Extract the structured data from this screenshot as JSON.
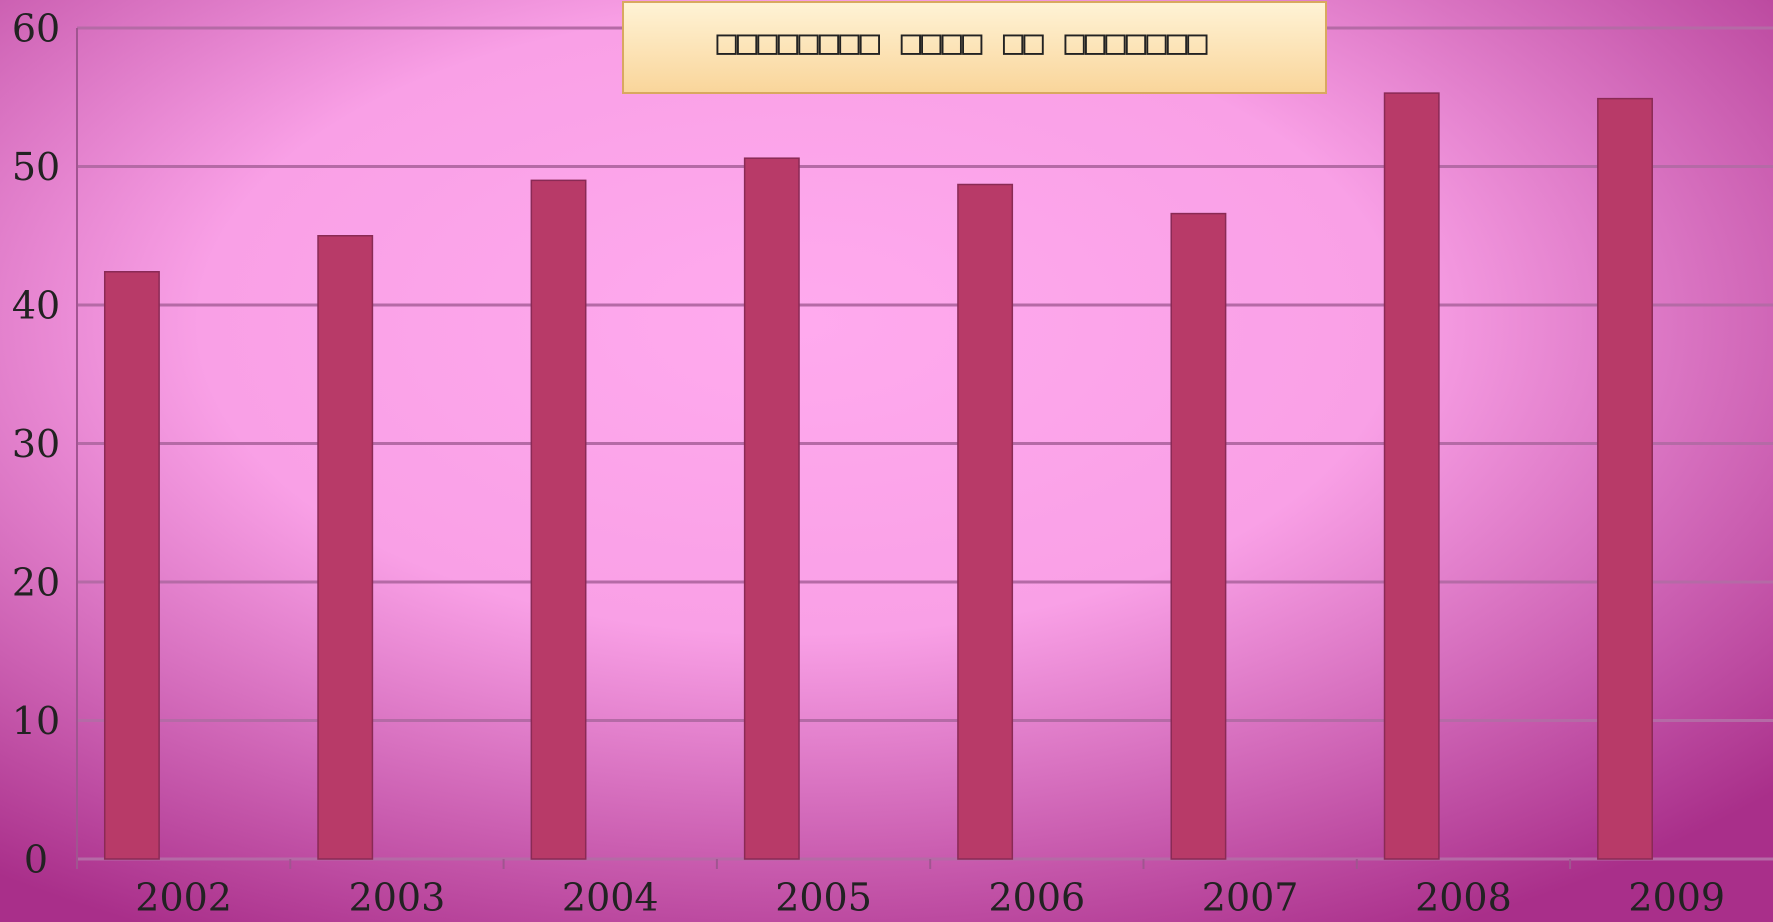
{
  "chart_data": {
    "type": "bar",
    "title": "□□□□□□□□ □□□□ □□ □□□□□□□",
    "categories": [
      "2002",
      "2003",
      "2004",
      "2005",
      "2006",
      "2007",
      "2008",
      "2009"
    ],
    "values": [
      42.4,
      45.0,
      49.0,
      50.6,
      48.7,
      46.6,
      55.3,
      54.9
    ],
    "color": "#b83a68",
    "ylim": [
      0,
      60
    ],
    "yticks": [
      0,
      10,
      20,
      30,
      40,
      50,
      60
    ],
    "grid": true
  }
}
